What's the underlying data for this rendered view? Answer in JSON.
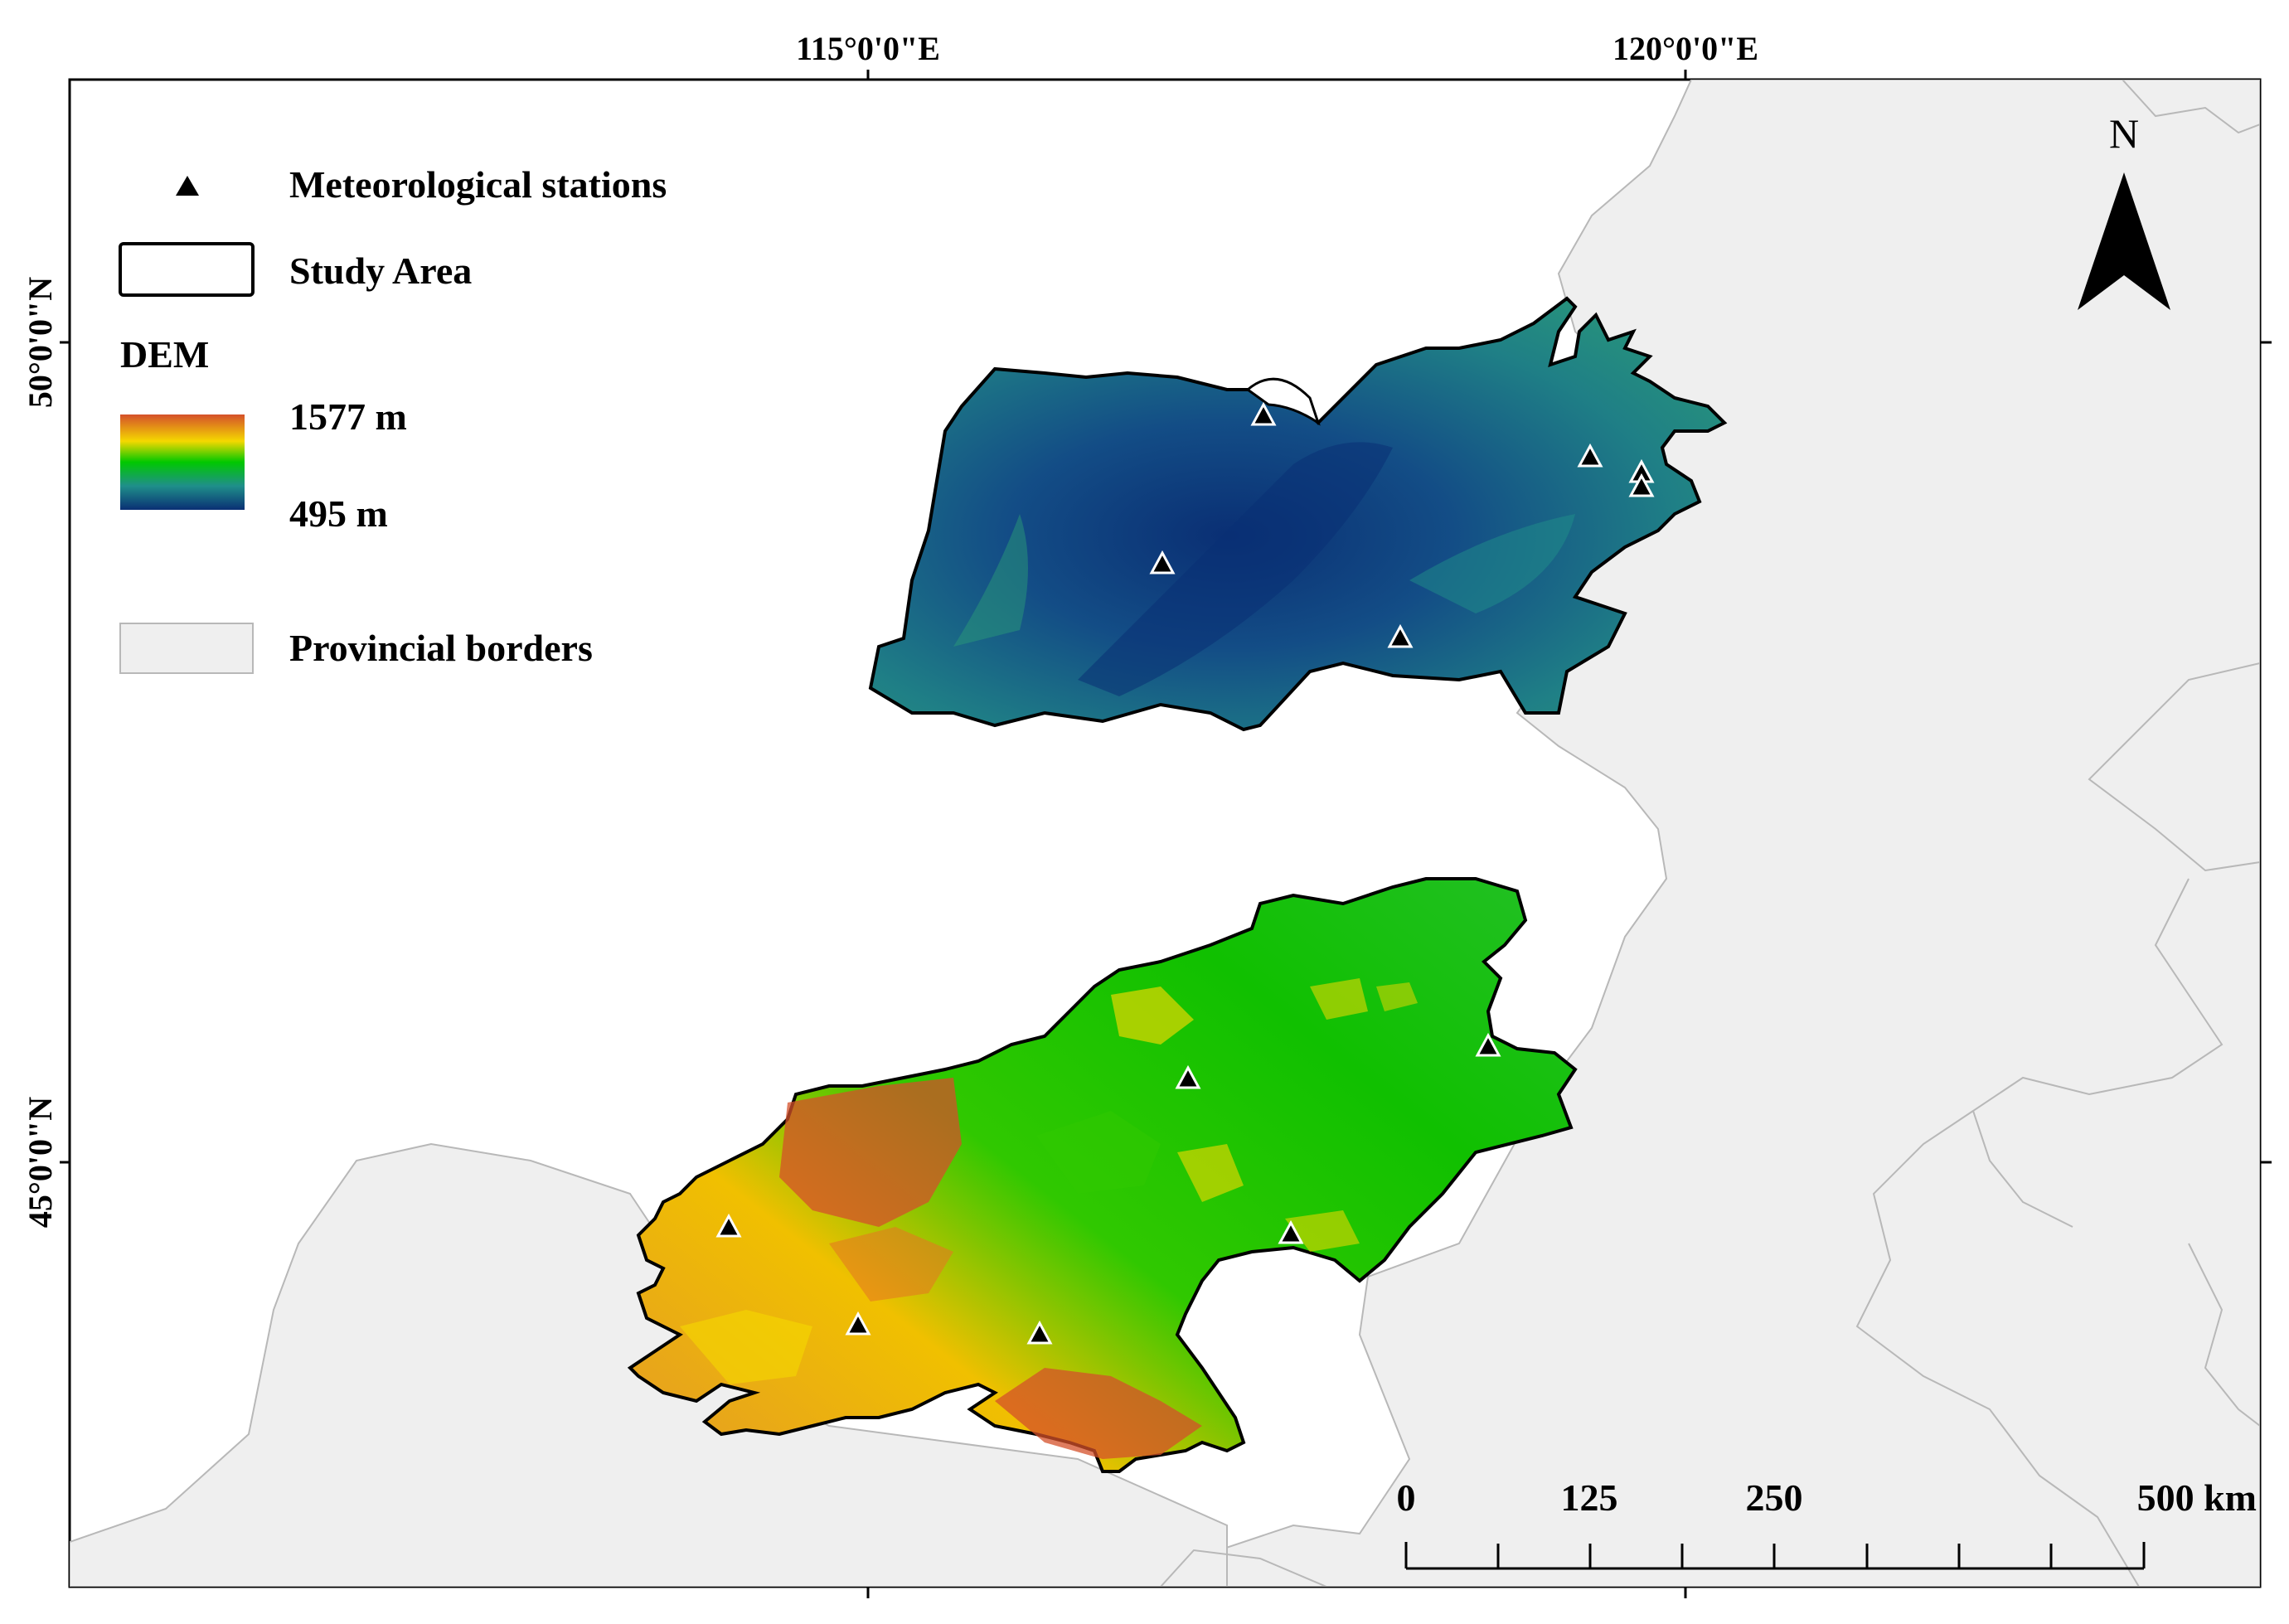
{
  "axes": {
    "top_labels": [
      "115°0'0\"E",
      "120°0'0\"E"
    ],
    "left_labels": [
      "50°0'0\"N",
      "45°0'0\"N"
    ]
  },
  "legend": {
    "stations_label": "Meteorological stations",
    "study_area_label": "Study Area",
    "dem_title": "DEM",
    "dem_high": "1577 m",
    "dem_low": "495 m",
    "provincial_label": "Provincial borders"
  },
  "north_arrow": {
    "label": "N"
  },
  "scale_bar": {
    "ticks": [
      "0",
      "125",
      "250",
      "500 km"
    ]
  },
  "colors": {
    "provincial_fill": "#efefef",
    "provincial_line": "#b8b8b8",
    "dem_high": "#d4502a",
    "dem_mid_high": "#f5d800",
    "dem_mid": "#00c800",
    "dem_mid_low": "#1f8f8a",
    "dem_low": "#0a2f74"
  },
  "stations": {
    "north_count": 6,
    "south_count": 6
  }
}
